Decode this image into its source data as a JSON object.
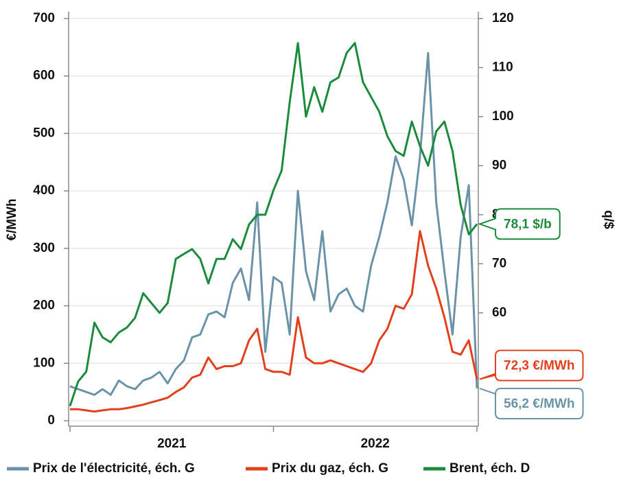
{
  "chart_data": {
    "type": "line",
    "y_label": "€/MWh",
    "y2_label": "q/$",
    "x": [
      2021.0,
      2021.04,
      2021.08,
      2021.12,
      2021.16,
      2021.2,
      2021.24,
      2021.28,
      2021.32,
      2021.36,
      2021.4,
      2021.44,
      2021.48,
      2021.52,
      2021.56,
      2021.6,
      2021.64,
      2021.68,
      2021.72,
      2021.76,
      2021.8,
      2021.84,
      2021.88,
      2021.92,
      2021.96,
      2022.0,
      2022.04,
      2022.08,
      2022.12,
      2022.16,
      2022.2,
      2022.24,
      2022.28,
      2022.32,
      2022.36,
      2022.4,
      2022.44,
      2022.48,
      2022.52,
      2022.56,
      2022.6,
      2022.64,
      2022.68,
      2022.72,
      2022.76,
      2022.8,
      2022.84,
      2022.88,
      2022.92,
      2022.96,
      2023.0
    ],
    "xlim": [
      2021,
      2023
    ],
    "xticks": [
      2021,
      2022,
      2023
    ],
    "x_labels": [
      {
        "value": 2021.5,
        "label": "2021"
      },
      {
        "value": 2022.5,
        "label": "2022"
      }
    ],
    "ylim": [
      0,
      700
    ],
    "yticks": [
      0,
      100,
      200,
      300,
      400,
      500,
      600,
      700
    ],
    "y2lim": [
      38,
      120
    ],
    "y2ticks": [
      60,
      70,
      80,
      90,
      100,
      110,
      120
    ],
    "grid": true,
    "series": [
      {
        "name": "Prix de l'électricité, éch. G",
        "color": "#6b93a8",
        "axis": "y",
        "last_label": "56,2 €/MWh",
        "values": [
          60,
          55,
          50,
          45,
          55,
          45,
          70,
          60,
          55,
          70,
          75,
          85,
          65,
          90,
          105,
          145,
          150,
          185,
          190,
          180,
          240,
          265,
          210,
          380,
          120,
          250,
          240,
          150,
          400,
          260,
          210,
          330,
          190,
          220,
          230,
          200,
          190,
          270,
          320,
          380,
          460,
          420,
          340,
          460,
          640,
          380,
          260,
          150,
          320,
          410,
          56.2
        ]
      },
      {
        "name": "Prix du gaz, éch. G",
        "color": "#e2401c",
        "axis": "y",
        "last_label": "72,3 €/MWh",
        "values": [
          20,
          20,
          18,
          16,
          18,
          20,
          20,
          22,
          25,
          28,
          32,
          36,
          40,
          50,
          58,
          75,
          80,
          110,
          90,
          95,
          95,
          100,
          140,
          160,
          90,
          85,
          85,
          80,
          180,
          110,
          100,
          100,
          105,
          100,
          95,
          90,
          85,
          100,
          140,
          160,
          200,
          195,
          220,
          330,
          270,
          230,
          180,
          120,
          115,
          140,
          72.3
        ]
      },
      {
        "name": "Brent, éch. D",
        "color": "#1b8a3c",
        "axis": "y2",
        "last_label": "78,1 $/b",
        "values": [
          41,
          46,
          48,
          58,
          55,
          54,
          56,
          57,
          59,
          64,
          62,
          60,
          62,
          71,
          72,
          73,
          71,
          66,
          71,
          71,
          75,
          73,
          78,
          80,
          80,
          85,
          89,
          103,
          115,
          100,
          106,
          101,
          107,
          108,
          113,
          115,
          107,
          104,
          101,
          96,
          93,
          92,
          99,
          94,
          90,
          97,
          99,
          93,
          82,
          76,
          78.1
        ]
      }
    ]
  }
}
